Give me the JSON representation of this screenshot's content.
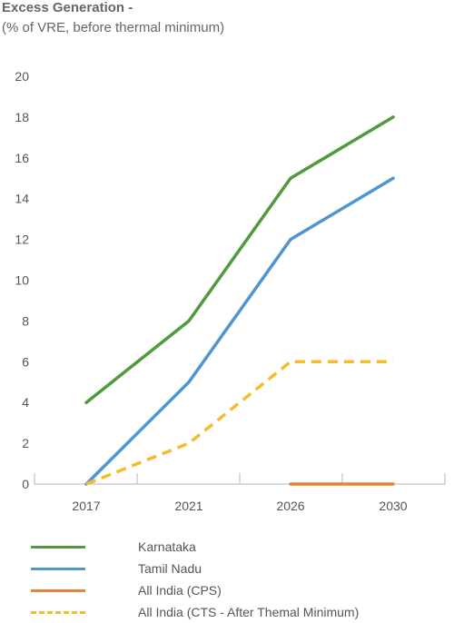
{
  "chart_data": {
    "type": "line",
    "title": "Excess Generation -",
    "subtitle": "(% of VRE, before thermal minimum)",
    "xlabel": "",
    "ylabel": "",
    "categories": [
      "2017",
      "2021",
      "2026",
      "2030"
    ],
    "ylim": [
      0,
      20
    ],
    "yticks": [
      0,
      2,
      4,
      6,
      8,
      10,
      12,
      14,
      16,
      18,
      20
    ],
    "grid": false,
    "legend_position": "bottom",
    "series": [
      {
        "name": "Karnataka",
        "color": "#4e9a3c",
        "style": "solid",
        "values": [
          4,
          8,
          15,
          18
        ]
      },
      {
        "name": "Tamil Nadu",
        "color": "#4f95cf",
        "style": "solid",
        "values": [
          0,
          5,
          12,
          15
        ]
      },
      {
        "name": "All India (CPS)",
        "color": "#e8803a",
        "style": "solid",
        "values": [
          null,
          null,
          0,
          0
        ]
      },
      {
        "name": "All India (CTS - After Themal Minimum)",
        "color": "#f5bd2c",
        "style": "dashed",
        "values": [
          0,
          2,
          6,
          6
        ]
      }
    ]
  }
}
